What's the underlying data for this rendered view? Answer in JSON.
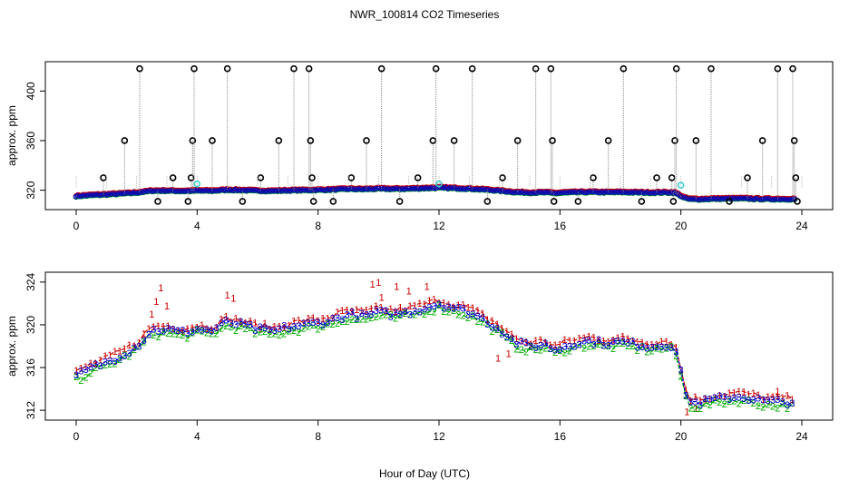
{
  "title": "NWR_100814  CO2 Timeseries",
  "xlabel": "Hour of Day (UTC)",
  "colors": {
    "s1": "#cc0000",
    "s2": "#00aa00",
    "s3": "#0000cc",
    "cyan": "#33cccc",
    "spike": "#000000",
    "drop": "#888888"
  },
  "chart_data": [
    {
      "type": "scatter",
      "name": "top-panel",
      "ylabel": "approx. ppm",
      "xlim": [
        0,
        24
      ],
      "ylim": [
        308,
        420
      ],
      "xticks": [
        "0",
        "4",
        "8",
        "12",
        "16",
        "20",
        "24"
      ],
      "yticks": [
        "320",
        "360",
        "400"
      ],
      "spikes": [
        [
          0.9,
          330
        ],
        [
          1.6,
          360
        ],
        [
          2.1,
          418
        ],
        [
          2.7,
          311
        ],
        [
          3.2,
          330
        ],
        [
          3.7,
          311
        ],
        [
          3.8,
          330
        ],
        [
          3.85,
          360
        ],
        [
          3.9,
          418
        ],
        [
          4.5,
          360
        ],
        [
          5.0,
          418
        ],
        [
          5.5,
          311
        ],
        [
          6.1,
          330
        ],
        [
          6.7,
          360
        ],
        [
          7.2,
          418
        ],
        [
          7.7,
          418
        ],
        [
          7.75,
          360
        ],
        [
          7.8,
          330
        ],
        [
          7.85,
          311
        ],
        [
          8.5,
          311
        ],
        [
          9.1,
          330
        ],
        [
          9.6,
          360
        ],
        [
          10.1,
          418
        ],
        [
          10.7,
          311
        ],
        [
          11.3,
          330
        ],
        [
          11.8,
          360
        ],
        [
          11.9,
          418
        ],
        [
          12.5,
          360
        ],
        [
          13.1,
          418
        ],
        [
          13.6,
          311
        ],
        [
          14.1,
          330
        ],
        [
          14.6,
          360
        ],
        [
          15.2,
          418
        ],
        [
          15.7,
          418
        ],
        [
          15.75,
          360
        ],
        [
          15.8,
          311
        ],
        [
          16.6,
          311
        ],
        [
          17.1,
          330
        ],
        [
          17.6,
          360
        ],
        [
          18.1,
          418
        ],
        [
          18.7,
          311
        ],
        [
          19.2,
          330
        ],
        [
          19.7,
          330
        ],
        [
          19.75,
          311
        ],
        [
          19.8,
          360
        ],
        [
          19.85,
          418
        ],
        [
          20.5,
          360
        ],
        [
          21.0,
          418
        ],
        [
          21.6,
          311
        ],
        [
          22.2,
          330
        ],
        [
          22.7,
          360
        ],
        [
          23.2,
          418
        ],
        [
          23.7,
          418
        ],
        [
          23.75,
          360
        ],
        [
          23.8,
          330
        ],
        [
          23.85,
          311
        ]
      ],
      "cyan_points": [
        [
          4.0,
          325
        ],
        [
          12.0,
          325
        ],
        [
          20.0,
          324
        ]
      ]
    },
    {
      "type": "line",
      "name": "bottom-panel",
      "ylabel": "approx. ppm",
      "xlim": [
        0,
        24
      ],
      "ylim": [
        311.5,
        324.5
      ],
      "xticks": [
        "0",
        "4",
        "8",
        "12",
        "16",
        "20",
        "24"
      ],
      "yticks": [
        "312",
        "316",
        "320",
        "324"
      ],
      "series": [
        {
          "name": "1",
          "label": "1",
          "color": "#cc0000"
        },
        {
          "name": "2",
          "label": "2",
          "color": "#00aa00"
        },
        {
          "name": "3",
          "label": "3",
          "color": "#0000cc"
        }
      ],
      "baseline": [
        [
          0.0,
          315.2
        ],
        [
          0.5,
          316.0
        ],
        [
          1.0,
          316.5
        ],
        [
          1.5,
          317.2
        ],
        [
          2.0,
          318.0
        ],
        [
          2.5,
          319.5
        ],
        [
          3.0,
          319.6
        ],
        [
          3.5,
          319.3
        ],
        [
          4.0,
          319.6
        ],
        [
          4.5,
          319.5
        ],
        [
          5.0,
          320.3
        ],
        [
          5.5,
          320.0
        ],
        [
          6.0,
          319.6
        ],
        [
          6.5,
          319.4
        ],
        [
          7.0,
          319.8
        ],
        [
          7.5,
          320.0
        ],
        [
          8.0,
          320.2
        ],
        [
          8.5,
          320.5
        ],
        [
          9.0,
          321.0
        ],
        [
          9.5,
          320.8
        ],
        [
          10.0,
          321.2
        ],
        [
          10.5,
          321.0
        ],
        [
          11.0,
          321.2
        ],
        [
          11.5,
          321.6
        ],
        [
          12.0,
          322.0
        ],
        [
          12.5,
          321.6
        ],
        [
          13.0,
          321.2
        ],
        [
          13.5,
          320.5
        ],
        [
          14.0,
          319.6
        ],
        [
          14.5,
          318.4
        ],
        [
          15.0,
          318.0
        ],
        [
          15.5,
          318.2
        ],
        [
          15.9,
          317.6
        ],
        [
          16.1,
          318.0
        ],
        [
          16.5,
          318.3
        ],
        [
          17.0,
          318.5
        ],
        [
          17.5,
          318.3
        ],
        [
          18.0,
          318.4
        ],
        [
          18.5,
          318.2
        ],
        [
          19.0,
          318.0
        ],
        [
          19.5,
          318.2
        ],
        [
          19.8,
          318.0
        ],
        [
          20.0,
          315.5
        ],
        [
          20.1,
          314.0
        ],
        [
          20.3,
          312.8
        ],
        [
          20.6,
          312.7
        ],
        [
          21.0,
          313.0
        ],
        [
          21.5,
          313.2
        ],
        [
          22.0,
          313.3
        ],
        [
          22.5,
          313.0
        ],
        [
          23.0,
          312.8
        ],
        [
          23.5,
          312.8
        ],
        [
          23.8,
          312.8
        ]
      ],
      "red_peaks": [
        [
          2.5,
          321.0
        ],
        [
          2.65,
          322.2
        ],
        [
          2.8,
          323.5
        ],
        [
          3.0,
          321.8
        ],
        [
          5.0,
          322.8
        ],
        [
          5.2,
          322.5
        ],
        [
          9.8,
          323.8
        ],
        [
          10.0,
          324.0
        ],
        [
          10.1,
          322.6
        ],
        [
          10.6,
          323.6
        ],
        [
          11.0,
          323.2
        ],
        [
          11.6,
          323.6
        ],
        [
          13.95,
          316.9
        ],
        [
          14.3,
          317.3
        ],
        [
          20.2,
          311.9
        ],
        [
          20.5,
          312.2
        ],
        [
          23.2,
          313.8
        ]
      ]
    }
  ]
}
